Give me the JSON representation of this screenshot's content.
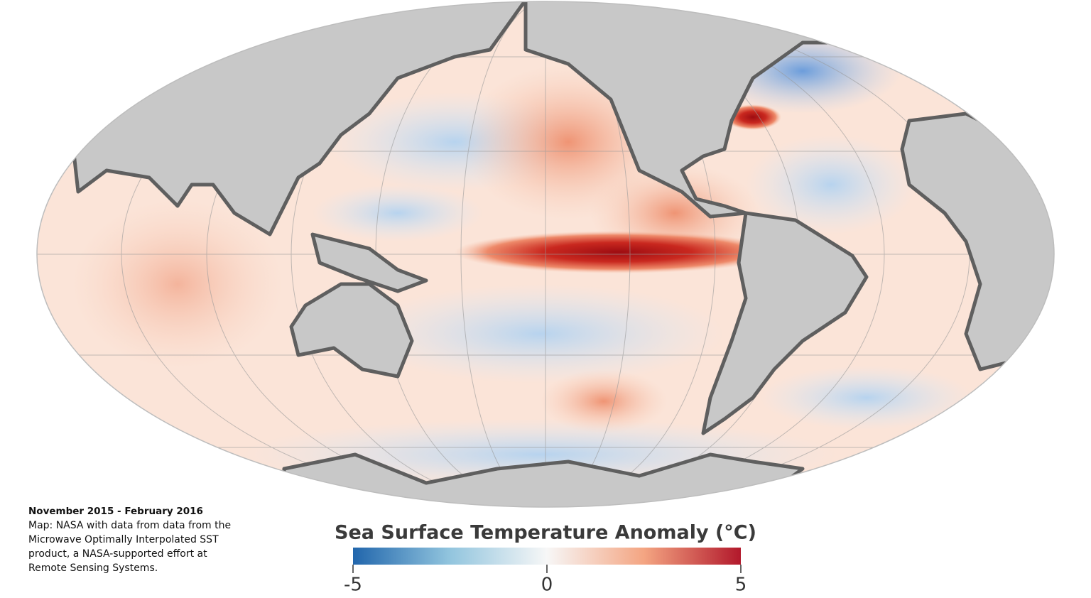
{
  "caption": {
    "title": "November 2015 - February 2016",
    "lines": [
      "Map: NASA with data from data from the",
      "Microwave Optimally Interpolated SST",
      "product, a NASA-supported effort at",
      "Remote Sensing Systems."
    ]
  },
  "colorbar": {
    "title": "Sea Surface Temperature Anomaly (°C)",
    "lim": [
      -5,
      5
    ],
    "ticks": [
      -5,
      0,
      5
    ]
  }
}
